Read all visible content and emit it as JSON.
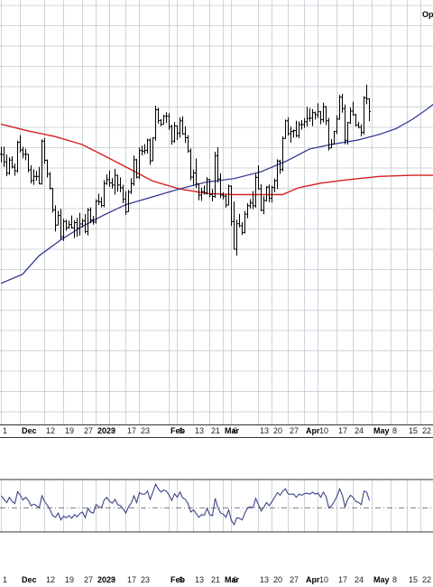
{
  "corner_label": "Op",
  "chart_data": {
    "type": "ohlc",
    "colors": {
      "price_bars": "#000000",
      "ma_fast": "#2b2f8f",
      "ma_slow": "#d42020",
      "oscillator": "#3c4585",
      "grid": "#c3c9d2",
      "panel_border": "#333333",
      "midline": "#666666"
    },
    "x_axis": {
      "month_labels": [
        {
          "text": "Dec",
          "bar": 7
        },
        {
          "text": "2023",
          "bar": 35
        },
        {
          "text": "Feb",
          "bar": 62
        },
        {
          "text": "Mar",
          "bar": 82
        },
        {
          "text": "Apr",
          "bar": 112
        },
        {
          "text": "May",
          "bar": 137
        }
      ],
      "day_labels": [
        {
          "text": "1",
          "bar": 0
        },
        {
          "text": "12",
          "bar": 16
        },
        {
          "text": "19",
          "bar": 23
        },
        {
          "text": "27",
          "bar": 30
        },
        {
          "text": "9",
          "bar": 40
        },
        {
          "text": "17",
          "bar": 46
        },
        {
          "text": "23",
          "bar": 51
        },
        {
          "text": "6",
          "bar": 65
        },
        {
          "text": "13",
          "bar": 71
        },
        {
          "text": "21",
          "bar": 77
        },
        {
          "text": "6",
          "bar": 85
        },
        {
          "text": "13",
          "bar": 95
        },
        {
          "text": "20",
          "bar": 100
        },
        {
          "text": "27",
          "bar": 106
        },
        {
          "text": "10",
          "bar": 117
        },
        {
          "text": "17",
          "bar": 124
        },
        {
          "text": "24",
          "bar": 130
        },
        {
          "text": "8",
          "bar": 144
        },
        {
          "text": "15",
          "bar": 150
        },
        {
          "text": "22",
          "bar": 155
        }
      ]
    },
    "price_panel": {
      "ylim": [
        0,
        100
      ],
      "bars": [
        [
          68.8,
          72.0,
          65.2,
          68.6
        ],
        [
          68.6,
          72.0,
          63.2,
          65.4
        ],
        [
          65.4,
          68.6,
          59.1,
          60.4
        ],
        [
          60.4,
          67.4,
          59.7,
          66.2
        ],
        [
          66.2,
          67.8,
          62.5,
          63.1
        ],
        [
          63.1,
          64.6,
          59.3,
          61.5
        ],
        [
          61.5,
          74.7,
          60.6,
          74.0
        ],
        [
          74.0,
          77.2,
          69.5,
          70.6
        ],
        [
          70.6,
          72.0,
          66.9,
          68.7
        ],
        [
          68.7,
          71.2,
          66.1,
          68.7
        ],
        [
          68.7,
          68.9,
          60.8,
          61.9
        ],
        [
          61.9,
          63.9,
          55.9,
          57.2
        ],
        [
          57.2,
          62.1,
          55.3,
          59.0
        ],
        [
          59.0,
          61.4,
          57.1,
          59.0
        ],
        [
          59.0,
          63.2,
          55.6,
          55.7
        ],
        [
          55.7,
          75.3,
          55.4,
          74.5
        ],
        [
          74.5,
          75.9,
          64.6,
          66.1
        ],
        [
          66.1,
          66.4,
          58.5,
          60.0
        ],
        [
          60.0,
          60.9,
          53.2,
          53.8
        ],
        [
          53.8,
          53.9,
          43.1,
          44.3
        ],
        [
          44.3,
          46.3,
          34.8,
          37.6
        ],
        [
          37.6,
          43.9,
          37.5,
          41.8
        ],
        [
          41.8,
          44.7,
          31.3,
          32.5
        ],
        [
          32.5,
          40.4,
          30.6,
          39.2
        ],
        [
          39.2,
          40.0,
          35.1,
          36.4
        ],
        [
          36.4,
          39.6,
          36.0,
          37.8
        ],
        [
          37.8,
          41.8,
          36.0,
          36.4
        ],
        [
          36.4,
          39.8,
          31.9,
          38.7
        ],
        [
          38.7,
          40.7,
          32.5,
          36.2
        ],
        [
          36.2,
          43.0,
          33.0,
          38.1
        ],
        [
          38.1,
          40.4,
          36.5,
          39.4
        ],
        [
          39.4,
          42.4,
          34.0,
          34.8
        ],
        [
          34.8,
          45.1,
          33.1,
          44.3
        ],
        [
          44.3,
          45.4,
          38.4,
          39.8
        ],
        [
          39.8,
          41.6,
          37.8,
          38.9
        ],
        [
          38.9,
          48.9,
          38.3,
          48.1
        ],
        [
          48.1,
          51.4,
          46.5,
          47.8
        ],
        [
          47.8,
          49.9,
          45.4,
          46.2
        ],
        [
          46.2,
          57.3,
          45.5,
          55.9
        ],
        [
          55.9,
          59.9,
          55.3,
          57.6
        ],
        [
          57.6,
          61.6,
          54.4,
          56.1
        ],
        [
          56.1,
          58.3,
          53.6,
          55.2
        ],
        [
          55.2,
          62.3,
          51.0,
          59.5
        ],
        [
          59.5,
          59.7,
          52.3,
          55.2
        ],
        [
          55.2,
          58.6,
          52.1,
          54.0
        ],
        [
          54.0,
          55.3,
          47.2,
          48.9
        ],
        [
          48.9,
          52.5,
          42.1,
          43.5
        ],
        [
          43.5,
          53.1,
          43.4,
          52.1
        ],
        [
          52.1,
          58.2,
          51.3,
          55.8
        ],
        [
          55.8,
          68.2,
          54.9,
          66.3
        ],
        [
          66.3,
          66.7,
          58.1,
          58.7
        ],
        [
          58.7,
          71.7,
          57.8,
          70.4
        ],
        [
          70.4,
          72.5,
          68.2,
          70.1
        ],
        [
          70.1,
          73.2,
          68.8,
          70.4
        ],
        [
          70.4,
          75.6,
          69.0,
          74.9
        ],
        [
          74.9,
          75.8,
          64.1,
          65.8
        ],
        [
          65.8,
          76.2,
          65.7,
          75.9
        ],
        [
          75.9,
          90.1,
          74.7,
          88.3
        ],
        [
          88.3,
          89.1,
          82.2,
          83.6
        ],
        [
          83.6,
          84.2,
          81.0,
          81.9
        ],
        [
          81.9,
          86.1,
          81.9,
          85.4
        ],
        [
          85.4,
          87.2,
          82.5,
          85.4
        ],
        [
          85.4,
          86.8,
          79.4,
          80.9
        ],
        [
          80.9,
          81.7,
          72.9,
          74.5
        ],
        [
          74.5,
          82.9,
          73.8,
          81.2
        ],
        [
          81.2,
          81.3,
          75.0,
          78.0
        ],
        [
          78.0,
          84.9,
          76.0,
          83.4
        ],
        [
          83.4,
          85.4,
          77.3,
          77.7
        ],
        [
          77.7,
          81.0,
          73.7,
          76.0
        ],
        [
          76.0,
          77.2,
          69.4,
          70.2
        ],
        [
          70.2,
          71.3,
          57.3,
          58.7
        ],
        [
          58.7,
          62.0,
          55.2,
          60.5
        ],
        [
          60.5,
          66.9,
          53.9,
          55.7
        ],
        [
          55.7,
          55.9,
          48.5,
          50.8
        ],
        [
          50.8,
          54.1,
          48.2,
          52.3
        ],
        [
          52.3,
          55.0,
          51.0,
          51.8
        ],
        [
          51.8,
          58.7,
          51.0,
          57.6
        ],
        [
          57.6,
          58.0,
          49.8,
          51.0
        ],
        [
          51.0,
          53.4,
          48.0,
          50.2
        ],
        [
          50.2,
          69.8,
          49.6,
          68.0
        ],
        [
          68.0,
          71.8,
          56.3,
          57.9
        ],
        [
          57.9,
          60.4,
          49.5,
          50.8
        ],
        [
          50.8,
          52.0,
          48.9,
          50.3
        ],
        [
          50.3,
          50.9,
          45.3,
          46.4
        ],
        [
          46.4,
          55.4,
          46.3,
          54.7
        ],
        [
          54.7,
          55.0,
          37.2,
          39.1
        ],
        [
          39.1,
          47.9,
          26.8,
          27.0
        ],
        [
          27.0,
          40.0,
          24.2,
          38.2
        ],
        [
          38.2,
          42.5,
          36.6,
          37.3
        ],
        [
          37.3,
          38.9,
          33.3,
          34.4
        ],
        [
          34.4,
          43.8,
          33.9,
          42.4
        ],
        [
          42.4,
          47.2,
          40.6,
          46.1
        ],
        [
          46.1,
          49.0,
          44.9,
          47.3
        ],
        [
          47.3,
          52.6,
          44.6,
          46.1
        ],
        [
          46.1,
          60.1,
          45.3,
          58.6
        ],
        [
          58.6,
          63.9,
          53.3,
          53.5
        ],
        [
          53.5,
          55.5,
          43.6,
          44.1
        ],
        [
          44.1,
          50.3,
          42.4,
          48.4
        ],
        [
          48.4,
          54.8,
          48.0,
          54.3
        ],
        [
          54.3,
          55.4,
          47.6,
          49.4
        ],
        [
          49.4,
          54.9,
          47.5,
          54.1
        ],
        [
          54.1,
          58.1,
          52.1,
          57.1
        ],
        [
          57.1,
          66.5,
          53.4,
          65.7
        ],
        [
          65.7,
          66.3,
          60.1,
          62.0
        ],
        [
          62.0,
          76.6,
          61.2,
          75.7
        ],
        [
          75.7,
          84.0,
          75.5,
          83.4
        ],
        [
          83.4,
          84.9,
          76.9,
          77.8
        ],
        [
          77.8,
          80.8,
          73.8,
          78.8
        ],
        [
          78.8,
          79.6,
          76.0,
          79.1
        ],
        [
          79.1,
          83.5,
          76.2,
          76.9
        ],
        [
          76.9,
          83.2,
          75.8,
          81.7
        ],
        [
          81.7,
          83.8,
          79.5,
          81.8
        ],
        [
          81.8,
          84.6,
          80.3,
          83.0
        ],
        [
          83.0,
          89.6,
          80.9,
          84.5
        ],
        [
          84.5,
          89.0,
          83.1,
          84.6
        ],
        [
          84.6,
          88.6,
          81.1,
          87.0
        ],
        [
          87.0,
          87.5,
          84.0,
          86.1
        ],
        [
          86.1,
          91.1,
          84.6,
          87.4
        ],
        [
          87.4,
          87.7,
          81.9,
          83.9
        ],
        [
          83.9,
          91.4,
          82.7,
          89.6
        ],
        [
          89.6,
          90.0,
          81.6,
          83.4
        ],
        [
          83.4,
          84.7,
          70.4,
          71.5
        ],
        [
          71.5,
          75.4,
          71.4,
          73.2
        ],
        [
          73.2,
          79.0,
          73.1,
          78.7
        ],
        [
          78.7,
          85.8,
          77.6,
          84.2
        ],
        [
          84.2,
          94.8,
          83.9,
          93.8
        ],
        [
          93.8,
          95.3,
          87.0,
          88.8
        ],
        [
          88.8,
          90.6,
          73.1,
          74.9
        ],
        [
          74.9,
          83.0,
          73.0,
          82.6
        ],
        [
          82.6,
          89.3,
          82.0,
          87.7
        ],
        [
          87.7,
          91.8,
          85.6,
          86.1
        ],
        [
          86.1,
          86.5,
          80.9,
          81.5
        ],
        [
          81.5,
          82.9,
          80.1,
          80.6
        ],
        [
          80.6,
          81.9,
          76.6,
          78.4
        ],
        [
          78.4,
          94.3,
          77.4,
          93.6
        ],
        [
          93.6,
          99.3,
          90.7,
          93.1
        ],
        [
          93.1,
          93.3,
          83.3,
          87.5
        ]
      ],
      "ma_fast": [
        [
          0,
          12
        ],
        [
          8,
          16
        ],
        [
          14,
          24
        ],
        [
          22,
          31
        ],
        [
          30,
          37
        ],
        [
          38,
          42
        ],
        [
          46,
          46.5
        ],
        [
          56,
          50
        ],
        [
          66,
          53.5
        ],
        [
          76,
          56.5
        ],
        [
          86,
          58
        ],
        [
          96,
          61
        ],
        [
          106,
          66
        ],
        [
          114,
          71
        ],
        [
          122,
          73
        ],
        [
          132,
          75
        ],
        [
          140,
          77.5
        ],
        [
          146,
          80
        ],
        [
          152,
          84
        ],
        [
          158,
          89
        ],
        [
          162,
          93
        ]
      ],
      "ma_slow": [
        [
          0,
          82
        ],
        [
          10,
          79
        ],
        [
          20,
          76.5
        ],
        [
          30,
          73
        ],
        [
          40,
          67
        ],
        [
          48,
          62
        ],
        [
          56,
          57
        ],
        [
          66,
          53.5
        ],
        [
          76,
          51.5
        ],
        [
          86,
          51
        ],
        [
          96,
          51
        ],
        [
          104,
          51
        ],
        [
          110,
          54
        ],
        [
          118,
          56
        ],
        [
          128,
          57.5
        ],
        [
          140,
          59
        ],
        [
          152,
          59.5
        ],
        [
          162,
          59.5
        ]
      ]
    },
    "oscillator_panel": {
      "ylim": [
        0,
        100
      ],
      "midline": 46,
      "values": [
        69,
        62,
        56,
        66,
        58,
        54,
        77,
        70,
        61,
        66,
        60,
        50,
        53,
        50,
        46,
        69,
        58,
        51,
        42,
        31,
        28,
        36,
        23,
        30,
        27,
        31,
        26,
        33,
        29,
        35,
        38,
        27,
        45,
        38,
        36,
        52,
        48,
        46,
        61,
        66,
        58,
        55,
        62,
        52,
        50,
        44,
        36,
        48,
        55,
        69,
        56,
        75,
        72,
        72,
        78,
        62,
        76,
        91,
        82,
        76,
        80,
        78,
        70,
        60,
        73,
        66,
        76,
        65,
        62,
        54,
        38,
        42,
        35,
        28,
        33,
        32,
        45,
        33,
        31,
        64,
        47,
        36,
        34,
        28,
        42,
        22,
        14,
        27,
        26,
        23,
        36,
        46,
        48,
        46,
        64,
        52,
        40,
        47,
        56,
        50,
        58,
        66,
        75,
        70,
        78,
        82,
        72,
        72,
        72,
        66,
        72,
        70,
        73,
        74,
        72,
        76,
        72,
        74,
        66,
        76,
        67,
        46,
        50,
        58,
        68,
        82,
        70,
        48,
        62,
        70,
        66,
        58,
        56,
        52,
        78,
        76,
        60
      ]
    }
  }
}
